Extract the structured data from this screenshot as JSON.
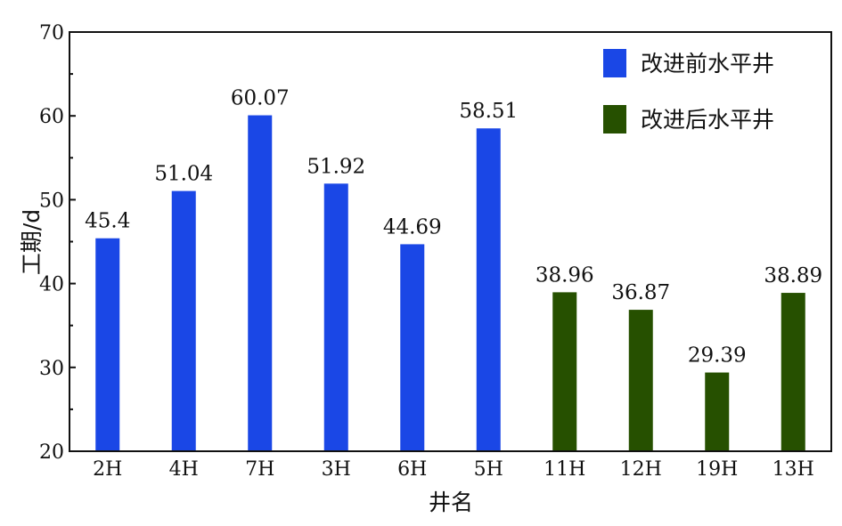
{
  "chart_data": {
    "type": "bar",
    "categories": [
      "2H",
      "4H",
      "7H",
      "3H",
      "6H",
      "5H",
      "11H",
      "12H",
      "19H",
      "13H"
    ],
    "values": [
      45.4,
      51.04,
      60.07,
      51.92,
      44.69,
      58.51,
      38.96,
      36.87,
      29.39,
      38.89
    ],
    "value_labels": [
      "45.4",
      "51.04",
      "60.07",
      "51.92",
      "44.69",
      "58.51",
      "38.96",
      "36.87",
      "29.39",
      "38.89"
    ],
    "series_index": [
      0,
      0,
      0,
      0,
      0,
      0,
      1,
      1,
      1,
      1
    ],
    "series": [
      {
        "name": "改进前水平井",
        "color": "#1a47e6"
      },
      {
        "name": "改进后水平井",
        "color": "#265000"
      }
    ],
    "xlabel": "井名",
    "ylabel": "工期/d",
    "ylim": [
      20,
      70
    ],
    "yticks": [
      "20",
      "30",
      "40",
      "50",
      "60",
      "70"
    ],
    "grid": false,
    "legend_position": "top-right"
  }
}
